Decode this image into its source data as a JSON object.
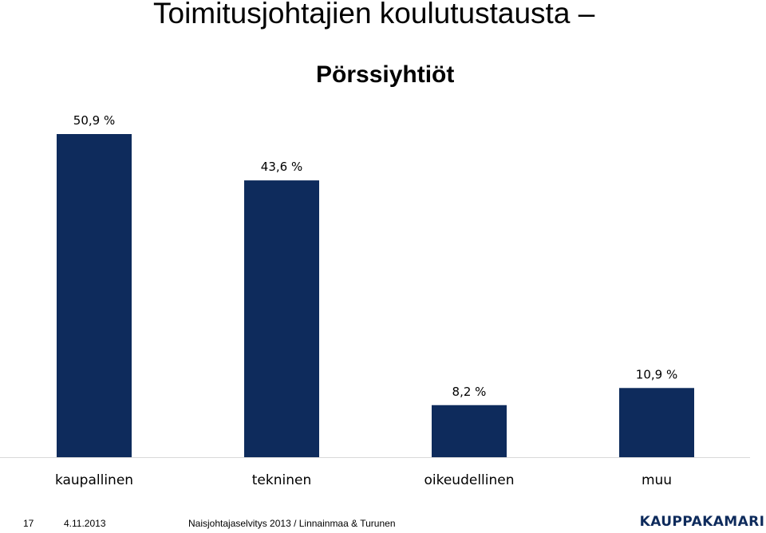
{
  "slide": {
    "title": "Toimitusjohtajien koulutustausta",
    "title_dash": "–",
    "subtitle": "Pörssiyhtiöt"
  },
  "chart_data": {
    "type": "bar",
    "categories": [
      "kaupallinen",
      "tekninen",
      "oikeudellinen",
      "muu"
    ],
    "values": [
      50.9,
      43.6,
      8.2,
      10.9
    ],
    "data_labels": [
      "50,9 %",
      "43,6 %",
      "8,2 %",
      "10,9 %"
    ],
    "title": "Pörssiyhtiöt",
    "xlabel": "",
    "ylabel": "",
    "ylim": [
      0,
      50.9
    ],
    "grid": false,
    "legend": "none",
    "bar_color": "#0e2b5c",
    "axis_color": "#d9d9d9"
  },
  "footer": {
    "page_number": "17",
    "date": "4.11.2013",
    "source": "Naisjohtajaselvitys 2013 / Linnainmaa & Turunen",
    "logo_text": "KAUPPAKAMARI"
  },
  "colors": {
    "logo": "#0e2b5c"
  }
}
